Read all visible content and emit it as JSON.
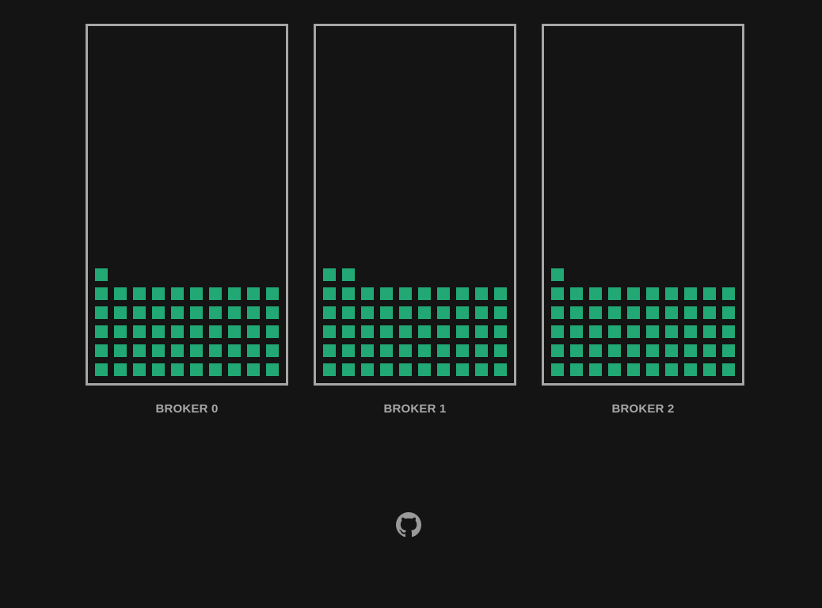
{
  "brokers": [
    {
      "label": "BROKER 0",
      "message_count": 51
    },
    {
      "label": "BROKER 1",
      "message_count": 52
    },
    {
      "label": "BROKER 2",
      "message_count": 51
    }
  ],
  "grid": {
    "columns": 10
  },
  "footer": {
    "icon": "github-icon"
  },
  "colors": {
    "background": "#141414",
    "border": "#a6a6a6",
    "message": "#22a875",
    "label": "#a8a8a8",
    "icon": "#9a9a9a"
  }
}
